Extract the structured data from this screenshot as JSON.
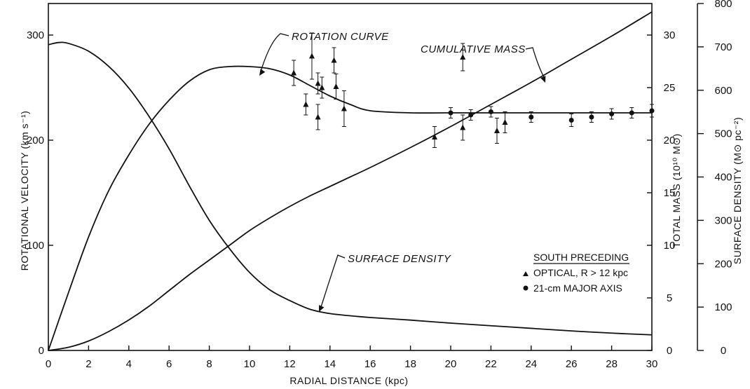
{
  "chart_data": {
    "type": "scatter",
    "xlabel": "RADIAL DISTANCE (kpc)",
    "xlim": [
      0,
      30
    ],
    "xticks": [
      0,
      2,
      4,
      6,
      8,
      10,
      12,
      14,
      16,
      18,
      20,
      22,
      24,
      26,
      28,
      30
    ],
    "axes": {
      "velocity": {
        "label": "ROTATIONAL VELOCITY (km s⁻¹)",
        "ylim": [
          0,
          330
        ],
        "ticks": [
          0,
          100,
          200,
          300
        ],
        "side": "left"
      },
      "mass": {
        "label": "TOTAL MASS (10¹⁰ M⊙)",
        "ylim": [
          0,
          33
        ],
        "ticks": [
          0,
          5,
          10,
          15,
          20,
          25,
          30
        ],
        "side": "inner-right"
      },
      "density": {
        "label": "SURFACE DENSITY (M⊙ pc⁻²)",
        "ylim": [
          0,
          800
        ],
        "ticks": [
          0,
          100,
          200,
          300,
          400,
          500,
          600,
          700,
          800
        ],
        "side": "outer-right"
      }
    },
    "curves": [
      {
        "key": "rotation",
        "label": "ROTATION CURVE",
        "axis": "velocity",
        "x": [
          0,
          1,
          2,
          3,
          4,
          5,
          6,
          7,
          8,
          9,
          10,
          11,
          12,
          13,
          14,
          15,
          16,
          18,
          20,
          22,
          24,
          26,
          28,
          30
        ],
        "y": [
          0,
          55,
          108,
          152,
          186,
          215,
          238,
          256,
          267,
          270,
          270,
          268,
          262,
          252,
          242,
          234,
          228,
          226,
          226,
          226,
          226,
          226,
          226,
          226
        ]
      },
      {
        "key": "mass",
        "label": "CUMULATIVE MASS",
        "axis": "mass",
        "x": [
          0,
          1,
          2,
          3,
          4,
          5,
          6,
          7,
          8,
          9,
          10,
          11,
          12,
          13,
          14,
          15,
          16,
          18,
          20,
          22,
          24,
          26,
          28,
          30
        ],
        "y": [
          0,
          0.3,
          0.9,
          1.8,
          2.9,
          4.2,
          5.7,
          7.2,
          8.6,
          10.0,
          11.4,
          12.6,
          13.7,
          14.7,
          15.6,
          16.5,
          17.4,
          19.3,
          21.3,
          23.4,
          25.5,
          27.7,
          29.9,
          32.2
        ]
      },
      {
        "key": "density",
        "label": "SURFACE DENSITY",
        "axis": "density",
        "x": [
          0,
          0.5,
          1,
          2,
          3,
          4,
          5,
          6,
          7,
          8,
          9,
          10,
          11,
          12,
          13,
          14,
          15,
          16,
          18,
          20,
          22,
          24,
          26,
          28,
          30
        ],
        "y": [
          705,
          710,
          708,
          690,
          655,
          605,
          540,
          465,
          380,
          300,
          235,
          180,
          140,
          115,
          95,
          85,
          80,
          76,
          70,
          63,
          57,
          51,
          45,
          40,
          36
        ]
      }
    ],
    "series": [
      {
        "name": "OPTICAL, R > 12 kpc",
        "marker": "triangle",
        "points": [
          {
            "x": 12.2,
            "y": 264,
            "err": 12
          },
          {
            "x": 12.8,
            "y": 234,
            "err": 10
          },
          {
            "x": 13.1,
            "y": 280,
            "err": 22
          },
          {
            "x": 13.4,
            "y": 222,
            "err": 12
          },
          {
            "x": 13.4,
            "y": 254,
            "err": 10
          },
          {
            "x": 13.6,
            "y": 250,
            "err": 10
          },
          {
            "x": 14.2,
            "y": 276,
            "err": 12
          },
          {
            "x": 14.3,
            "y": 251,
            "err": 12
          },
          {
            "x": 14.7,
            "y": 230,
            "err": 17
          },
          {
            "x": 19.2,
            "y": 203,
            "err": 10
          },
          {
            "x": 20.6,
            "y": 279,
            "err": 13
          },
          {
            "x": 20.6,
            "y": 212,
            "err": 12
          },
          {
            "x": 22.3,
            "y": 209,
            "err": 12
          },
          {
            "x": 22.7,
            "y": 217,
            "err": 10
          }
        ]
      },
      {
        "name": "21-cm MAJOR AXIS",
        "marker": "circle",
        "points": [
          {
            "x": 20.0,
            "y": 226,
            "err": 5
          },
          {
            "x": 21.0,
            "y": 224,
            "err": 5
          },
          {
            "x": 22.0,
            "y": 227,
            "err": 5
          },
          {
            "x": 24.0,
            "y": 222,
            "err": 5
          },
          {
            "x": 26.0,
            "y": 219,
            "err": 6
          },
          {
            "x": 27.0,
            "y": 222,
            "err": 5
          },
          {
            "x": 28.0,
            "y": 225,
            "err": 5
          },
          {
            "x": 29.0,
            "y": 226,
            "err": 5
          },
          {
            "x": 30.0,
            "y": 228,
            "err": 6
          }
        ]
      }
    ],
    "legend": {
      "title": "SOUTH PRECEDING",
      "position": "bottom-right"
    }
  }
}
